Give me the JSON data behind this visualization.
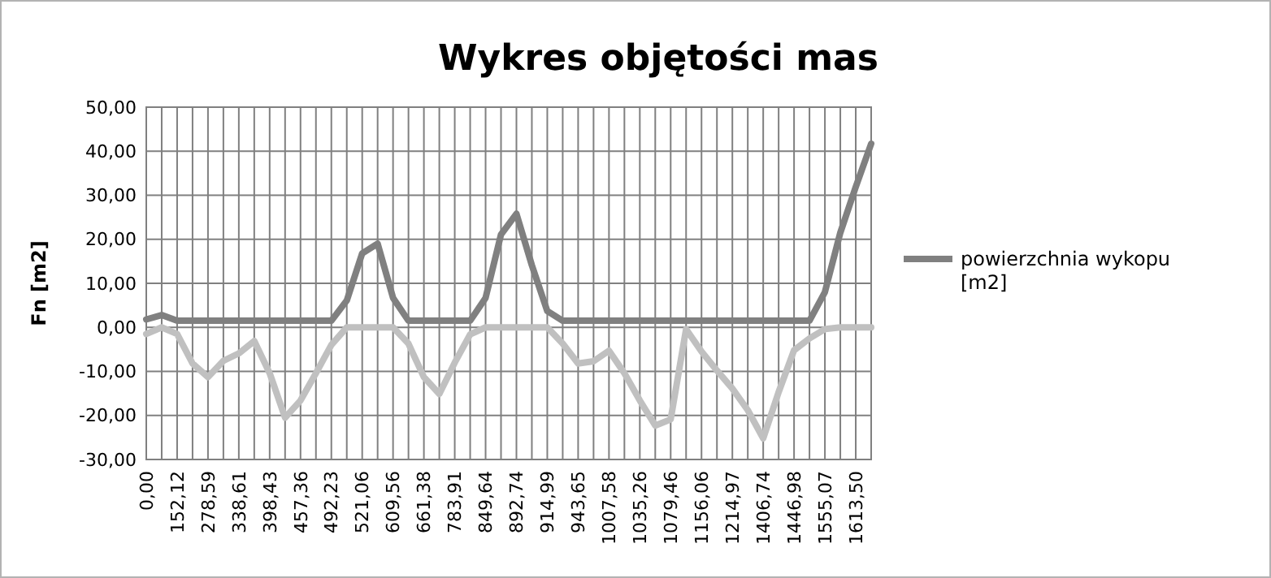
{
  "chart_data": {
    "type": "line",
    "title": "Wykres objętości mas",
    "ylabel": "Fn [m2]",
    "categories": [
      "0,00",
      null,
      "152,12",
      null,
      "278,59",
      null,
      "338,61",
      null,
      "398,43",
      null,
      "457,36",
      null,
      "492,23",
      null,
      "521,06",
      null,
      "609,56",
      null,
      "661,38",
      null,
      "783,91",
      null,
      "849,64",
      null,
      "892,74",
      null,
      "914,99",
      null,
      "943,65",
      null,
      "1007,58",
      null,
      "1035,26",
      null,
      "1079,46",
      null,
      "1156,06",
      null,
      "1214,97",
      null,
      "1406,74",
      null,
      "1446,98",
      null,
      "1555,07",
      null,
      "1613,50",
      null
    ],
    "series": [
      {
        "name": "powierzchnia wykopu [m2]",
        "color": "#808080",
        "values": [
          1.8,
          2.8,
          1.5,
          1.5,
          1.5,
          1.5,
          1.5,
          1.5,
          1.5,
          1.5,
          1.5,
          1.5,
          1.5,
          6.1,
          16.8,
          19,
          6.7,
          1.5,
          1.5,
          1.5,
          1.5,
          1.5,
          6.7,
          21.1,
          25.8,
          14.1,
          3.7,
          1.5,
          1.5,
          1.5,
          1.5,
          1.5,
          1.5,
          1.5,
          1.5,
          1.5,
          1.5,
          1.5,
          1.5,
          1.5,
          1.5,
          1.5,
          1.5,
          1.5,
          8,
          21.5,
          31.9,
          41.7
        ]
      },
      {
        "color": "#c0c0c0",
        "values": [
          -1.5,
          0,
          -1.5,
          -8.2,
          -11.3,
          -7.6,
          -5.9,
          -3.1,
          -10.4,
          -20.5,
          -16.6,
          -10.4,
          -4,
          0,
          0,
          0,
          0,
          -3.7,
          -11.3,
          -15.1,
          -8,
          -1.6,
          0,
          0,
          0,
          0,
          0,
          -3.7,
          -8.2,
          -7.7,
          -5.3,
          -10.4,
          -16.6,
          -22.3,
          -20.9,
          -0.4,
          -5.5,
          -9.8,
          -13.9,
          -18.8,
          -25.2,
          -14.7,
          -5.2,
          -2.5,
          -0.4,
          0,
          0,
          0
        ]
      }
    ],
    "ylim": [
      -30,
      50
    ],
    "yticks": [
      {
        "value": -30,
        "label": "-30,00"
      },
      {
        "value": -20,
        "label": "-20,00"
      },
      {
        "value": -10,
        "label": "-10,00"
      },
      {
        "value": 0,
        "label": "0,00"
      },
      {
        "value": 10,
        "label": "10,00"
      },
      {
        "value": 20,
        "label": "20,00"
      },
      {
        "value": 30,
        "label": "30,00"
      },
      {
        "value": 40,
        "label": "40,00"
      },
      {
        "value": 50,
        "label": "50,00"
      }
    ],
    "grid": true,
    "legend": "right",
    "marker": "none",
    "line_style": "solid"
  }
}
